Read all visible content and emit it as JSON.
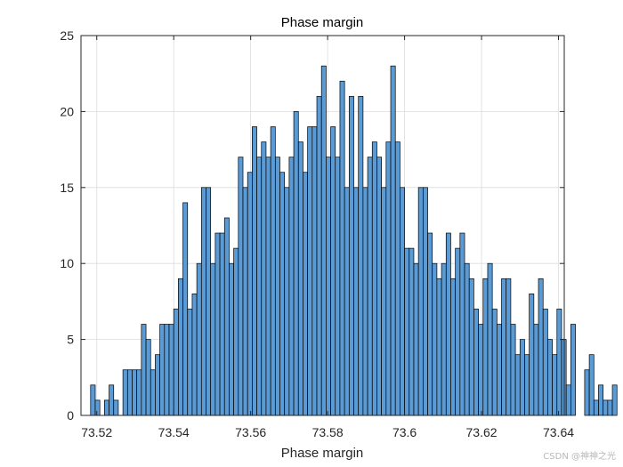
{
  "chart_data": {
    "type": "bar",
    "title": "Phase margin",
    "xlabel": "Phase margin",
    "ylabel": "",
    "xlim": [
      73.5159,
      73.6415
    ],
    "ylim": [
      0,
      25
    ],
    "xticks": [
      73.52,
      73.54,
      73.56,
      73.58,
      73.6,
      73.62,
      73.64
    ],
    "xtick_labels": [
      "73.52",
      "73.54",
      "73.56",
      "73.58",
      "73.6",
      "73.62",
      "73.64"
    ],
    "yticks": [
      0,
      5,
      10,
      15,
      20,
      25
    ],
    "ytick_labels": [
      "0",
      "5",
      "10",
      "15",
      "20",
      "25"
    ],
    "grid": true,
    "bin_start": 73.5184,
    "bin_width": 0.0012,
    "values": [
      2,
      1,
      0,
      1,
      2,
      1,
      0,
      3,
      3,
      3,
      3,
      6,
      5,
      3,
      4,
      6,
      6,
      6,
      7,
      9,
      14,
      7,
      8,
      10,
      15,
      15,
      10,
      12,
      12,
      13,
      10,
      11,
      17,
      15,
      16,
      19,
      17,
      18,
      17,
      19,
      17,
      16,
      15,
      17,
      20,
      18,
      16,
      19,
      19,
      21,
      23,
      17,
      19,
      17,
      22,
      15,
      21,
      15,
      21,
      15,
      17,
      18,
      17,
      15,
      18,
      23,
      18,
      15,
      11,
      11,
      10,
      15,
      15,
      12,
      10,
      9,
      10,
      12,
      9,
      11,
      12,
      10,
      9,
      7,
      6,
      9,
      10,
      7,
      6,
      9,
      9,
      6,
      4,
      5,
      4,
      8,
      6,
      9,
      7,
      5,
      4,
      7,
      5,
      2,
      6,
      0,
      0,
      3,
      4,
      1,
      2,
      1,
      1,
      2
    ],
    "colors": {
      "fill": "#5b9bd5",
      "edge": "#000000",
      "grid": "#dcdcdc",
      "axes": "#262626"
    }
  },
  "watermark": "CSDN @神神之光"
}
